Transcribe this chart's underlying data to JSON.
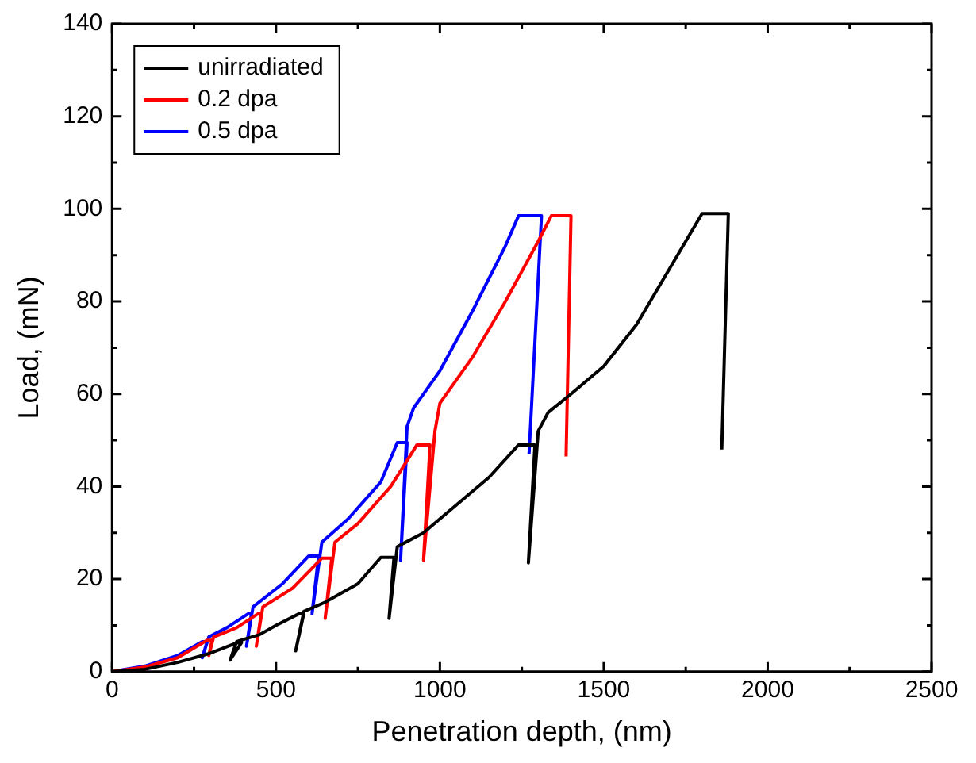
{
  "chart_data": {
    "type": "line",
    "xlabel": "Penetration depth, (nm)",
    "ylabel": "Load, (mN)",
    "xlim": [
      0,
      2500
    ],
    "xticks": [
      0,
      500,
      1000,
      1500,
      2000,
      2500
    ],
    "ylim": [
      0,
      140
    ],
    "yticks": [
      0,
      20,
      40,
      60,
      80,
      100,
      120,
      140
    ],
    "legend": "top left",
    "marker": "none",
    "line_style": "solid",
    "series": [
      {
        "name": "unirradiated",
        "color": "#000000",
        "x": [
          0,
          100,
          200,
          300,
          380,
          395,
          360,
          380,
          450,
          500,
          570,
          585,
          560,
          585,
          650,
          750,
          820,
          860,
          845,
          870,
          950,
          1050,
          1150,
          1240,
          1290,
          1270,
          1300,
          1330,
          1400,
          1500,
          1600,
          1700,
          1800,
          1880,
          1860
        ],
        "values": [
          0,
          0.5,
          2,
          4,
          6.2,
          6.3,
          2.5,
          6.5,
          8,
          10,
          12.5,
          12.5,
          4.5,
          13,
          15,
          19,
          24.7,
          24.7,
          11.5,
          27,
          30,
          36,
          42,
          49,
          49,
          23.5,
          52,
          56,
          60,
          66,
          75,
          87,
          99,
          99,
          48
        ]
      },
      {
        "name": "0.2 dpa",
        "color": "#ff0000",
        "x": [
          0,
          100,
          200,
          290,
          305,
          295,
          310,
          380,
          445,
          455,
          440,
          460,
          550,
          640,
          670,
          650,
          680,
          750,
          850,
          930,
          970,
          950,
          985,
          1000,
          1100,
          1200,
          1300,
          1340,
          1400,
          1385
        ],
        "values": [
          0,
          1,
          3,
          6.8,
          6.8,
          3.5,
          7.5,
          9.5,
          12.5,
          12.5,
          5.5,
          14,
          18,
          24.5,
          24.5,
          11.5,
          28,
          32,
          40,
          49,
          49,
          24,
          52,
          58,
          68,
          80,
          93,
          98.5,
          98.5,
          46.5
        ]
      },
      {
        "name": "0.5 dpa",
        "color": "#0000ff",
        "x": [
          0,
          100,
          200,
          275,
          290,
          275,
          295,
          350,
          415,
          425,
          410,
          430,
          520,
          600,
          630,
          610,
          640,
          720,
          820,
          870,
          900,
          880,
          900,
          920,
          1000,
          1100,
          1200,
          1240,
          1310,
          1272
        ],
        "values": [
          0,
          1.2,
          3.5,
          6.5,
          6.5,
          3,
          7.5,
          9.5,
          12.5,
          12.5,
          5.5,
          14,
          19,
          25,
          25,
          12.5,
          28,
          33,
          41,
          49.5,
          49.5,
          24,
          53,
          57,
          65,
          78,
          92,
          98.5,
          98.5,
          47
        ]
      }
    ]
  }
}
